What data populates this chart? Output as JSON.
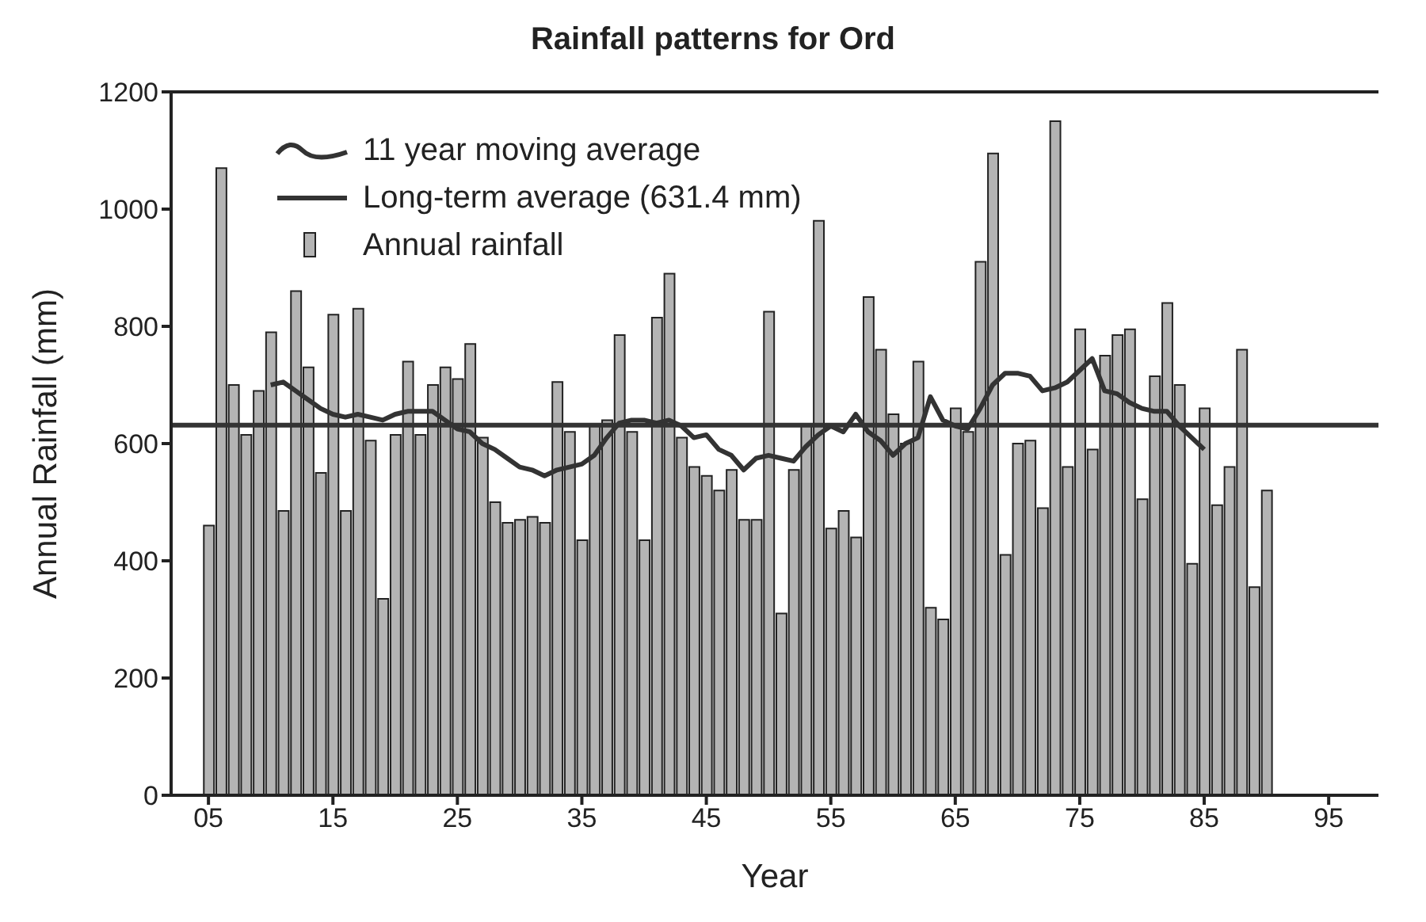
{
  "chart_data": {
    "type": "bar",
    "title": "Rainfall patterns for Ord",
    "xlabel": "Year",
    "ylabel": "Annual Rainfall (mm)",
    "x": [
      1905,
      1906,
      1907,
      1908,
      1909,
      1910,
      1911,
      1912,
      1913,
      1914,
      1915,
      1916,
      1917,
      1918,
      1919,
      1920,
      1921,
      1922,
      1923,
      1924,
      1925,
      1926,
      1927,
      1928,
      1929,
      1930,
      1931,
      1932,
      1933,
      1934,
      1935,
      1936,
      1937,
      1938,
      1939,
      1940,
      1941,
      1942,
      1943,
      1944,
      1945,
      1946,
      1947,
      1948,
      1949,
      1950,
      1951,
      1952,
      1953,
      1954,
      1955,
      1956,
      1957,
      1958,
      1959,
      1960,
      1961,
      1962,
      1963,
      1964,
      1965,
      1966,
      1967,
      1968,
      1969,
      1970,
      1971,
      1972,
      1973,
      1974,
      1975,
      1976,
      1977,
      1978,
      1979,
      1980,
      1981,
      1982,
      1983,
      1984,
      1985,
      1986,
      1987,
      1988,
      1989,
      1990
    ],
    "series": [
      {
        "name": "Annual rainfall",
        "color": "#b4b4b4",
        "values": [
          460,
          1070,
          700,
          615,
          690,
          790,
          485,
          860,
          730,
          550,
          820,
          485,
          830,
          605,
          335,
          615,
          740,
          615,
          700,
          730,
          710,
          770,
          610,
          500,
          465,
          470,
          475,
          465,
          705,
          620,
          435,
          630,
          640,
          785,
          620,
          435,
          815,
          890,
          610,
          560,
          545,
          520,
          555,
          470,
          470,
          825,
          310,
          555,
          630,
          980,
          455,
          485,
          440,
          850,
          760,
          650,
          600,
          740,
          320,
          300,
          660,
          620,
          910,
          1095,
          410,
          600,
          605,
          490,
          1150,
          560,
          795,
          590,
          750,
          785,
          795,
          505,
          715,
          840,
          700,
          395,
          660,
          495,
          560,
          760,
          355,
          520
        ]
      },
      {
        "name": "11 year moving average",
        "type": "line",
        "color": "#333333",
        "x": [
          1910,
          1911,
          1912,
          1913,
          1914,
          1915,
          1916,
          1917,
          1918,
          1919,
          1920,
          1921,
          1922,
          1923,
          1924,
          1925,
          1926,
          1927,
          1928,
          1929,
          1930,
          1931,
          1932,
          1933,
          1934,
          1935,
          1936,
          1937,
          1938,
          1939,
          1940,
          1941,
          1942,
          1943,
          1944,
          1945,
          1946,
          1947,
          1948,
          1949,
          1950,
          1951,
          1952,
          1953,
          1954,
          1955,
          1956,
          1957,
          1958,
          1959,
          1960,
          1961,
          1962,
          1963,
          1964,
          1965,
          1966,
          1967,
          1968,
          1969,
          1970,
          1971,
          1972,
          1973,
          1974,
          1975,
          1976,
          1977,
          1978,
          1979,
          1980,
          1981,
          1982,
          1983,
          1984,
          1985
        ],
        "values": [
          700,
          705,
          690,
          675,
          660,
          650,
          645,
          650,
          645,
          640,
          650,
          655,
          655,
          655,
          640,
          625,
          620,
          600,
          590,
          575,
          560,
          555,
          545,
          555,
          560,
          565,
          580,
          610,
          635,
          640,
          640,
          635,
          640,
          630,
          610,
          615,
          590,
          580,
          555,
          575,
          580,
          575,
          570,
          595,
          615,
          630,
          620,
          650,
          620,
          605,
          580,
          600,
          610,
          680,
          640,
          630,
          625,
          660,
          700,
          720,
          720,
          715,
          690,
          695,
          705,
          725,
          745,
          690,
          685,
          670,
          660,
          655,
          655,
          630,
          610,
          590
        ]
      }
    ],
    "ref_lines": [
      {
        "axis": "y",
        "value": 631.4,
        "label": "Long-term average (631.4 mm)",
        "color": "#333333"
      }
    ],
    "xlim": [
      1902,
      1999
    ],
    "xticks": [
      {
        "value": 1905,
        "label": "05"
      },
      {
        "value": 1915,
        "label": "15"
      },
      {
        "value": 1925,
        "label": "25"
      },
      {
        "value": 1935,
        "label": "35"
      },
      {
        "value": 1945,
        "label": "45"
      },
      {
        "value": 1955,
        "label": "55"
      },
      {
        "value": 1965,
        "label": "65"
      },
      {
        "value": 1975,
        "label": "75"
      },
      {
        "value": 1985,
        "label": "85"
      },
      {
        "value": 1995,
        "label": "95"
      }
    ],
    "ylim": [
      0,
      1200
    ],
    "yticks": [
      0,
      200,
      400,
      600,
      800,
      1000,
      1200
    ],
    "grid": false,
    "legend": "top left"
  }
}
